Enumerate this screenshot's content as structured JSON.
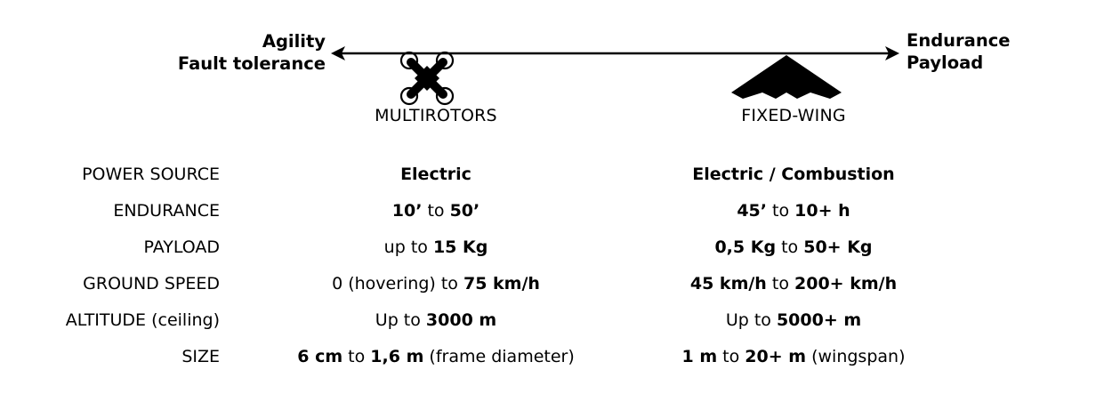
{
  "axis": {
    "left": [
      "Agility",
      "Fault tolerance"
    ],
    "right": [
      "Endurance",
      "Payload"
    ]
  },
  "types": {
    "multirotor": "MULTIROTORS",
    "fixed_wing": "FIXED-WING"
  },
  "rows": [
    {
      "label": "POWER SOURCE",
      "multirotor": {
        "parts": [
          {
            "text": "Electric",
            "bold": true
          }
        ]
      },
      "fixed_wing": {
        "parts": [
          {
            "text": "Electric / Combustion",
            "bold": true
          }
        ]
      }
    },
    {
      "label": "ENDURANCE",
      "multirotor": {
        "parts": [
          {
            "text": "10’",
            "bold": true
          },
          {
            "text": " to ",
            "bold": false
          },
          {
            "text": "50’",
            "bold": true
          }
        ]
      },
      "fixed_wing": {
        "parts": [
          {
            "text": "45’",
            "bold": true
          },
          {
            "text": " to ",
            "bold": false
          },
          {
            "text": "10+ h",
            "bold": true
          }
        ]
      }
    },
    {
      "label": "PAYLOAD",
      "multirotor": {
        "parts": [
          {
            "text": "up to ",
            "bold": false
          },
          {
            "text": "15 Kg",
            "bold": true
          }
        ]
      },
      "fixed_wing": {
        "parts": [
          {
            "text": "0,5 Kg",
            "bold": true
          },
          {
            "text": " to ",
            "bold": false
          },
          {
            "text": "50+ Kg",
            "bold": true
          }
        ]
      }
    },
    {
      "label": "GROUND SPEED",
      "multirotor": {
        "parts": [
          {
            "text": "0 (hovering) to ",
            "bold": false
          },
          {
            "text": "75 km/h",
            "bold": true
          }
        ]
      },
      "fixed_wing": {
        "parts": [
          {
            "text": "45 km/h",
            "bold": true
          },
          {
            "text": " to ",
            "bold": false
          },
          {
            "text": "200+ km/h",
            "bold": true
          }
        ]
      }
    },
    {
      "label": "ALTITUDE (ceiling)",
      "multirotor": {
        "parts": [
          {
            "text": "Up to ",
            "bold": false
          },
          {
            "text": "3000 m",
            "bold": true
          }
        ]
      },
      "fixed_wing": {
        "parts": [
          {
            "text": "Up to ",
            "bold": false
          },
          {
            "text": "5000+ m",
            "bold": true
          }
        ]
      }
    },
    {
      "label": "SIZE",
      "multirotor": {
        "parts": [
          {
            "text": "6 cm",
            "bold": true
          },
          {
            "text": " to ",
            "bold": false
          },
          {
            "text": "1,6 m",
            "bold": true
          },
          {
            "text": " (frame diameter)",
            "bold": false
          }
        ]
      },
      "fixed_wing": {
        "parts": [
          {
            "text": "1 m",
            "bold": true
          },
          {
            "text": " to ",
            "bold": false
          },
          {
            "text": "20+ m",
            "bold": true
          },
          {
            "text": " (wingspan)",
            "bold": false
          }
        ]
      }
    }
  ],
  "icons": {
    "multirotor": "quadcopter-icon",
    "fixed_wing": "flying-wing-icon"
  }
}
